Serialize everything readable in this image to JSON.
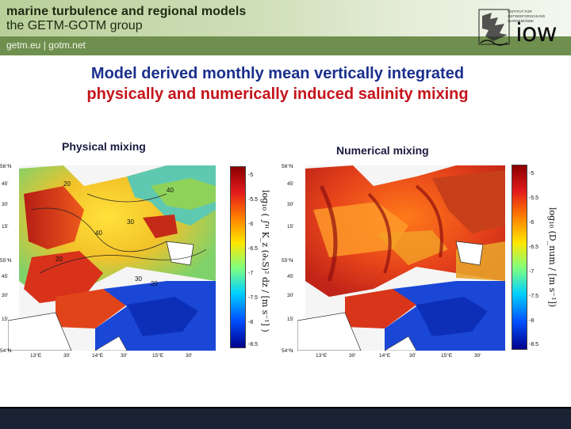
{
  "header": {
    "title": "marine turbulence and regional models",
    "subtitle": "the GETM-GOTM group",
    "links": "getm.eu | gotm.net",
    "institute": "INSTITUT FÜR OSTSEEFORSCHUNG WARNEMÜNDE",
    "logo_text": "iow"
  },
  "slide": {
    "title_line1": "Model derived monthly mean vertically integrated",
    "title_line2": "physically and numerically induced salinity mixing"
  },
  "panels": [
    {
      "label": "Physical mixing",
      "colorbar_ticks": [
        "-5",
        "-5.5",
        "-6",
        "-6.5",
        "-7",
        "-7.5",
        "-8",
        "-8.5"
      ],
      "colorbar_label": "log₁₀ ( ∫ᴴ K_z (∂ₓS)² dz / [m s⁻¹] )"
    },
    {
      "label": "Numerical mixing",
      "colorbar_ticks": [
        "-5",
        "-5.5",
        "-6",
        "-6.5",
        "-7",
        "-7.5",
        "-8",
        "-8.5"
      ],
      "colorbar_label": "log₁₀ (D_num / [m s⁻¹])"
    }
  ],
  "map_axes": {
    "lat_labels": [
      "56°N",
      "45'",
      "30'",
      "15'",
      "55°N",
      "45'",
      "30'",
      "15'",
      "54°N"
    ],
    "lon_labels": [
      "13°E",
      "30'",
      "14°E",
      "30'",
      "15°E",
      "30'"
    ]
  },
  "colors": {
    "title_blue": "#1a2f8c",
    "title_red": "#c4141a",
    "header_green": "#6f8f4e"
  }
}
